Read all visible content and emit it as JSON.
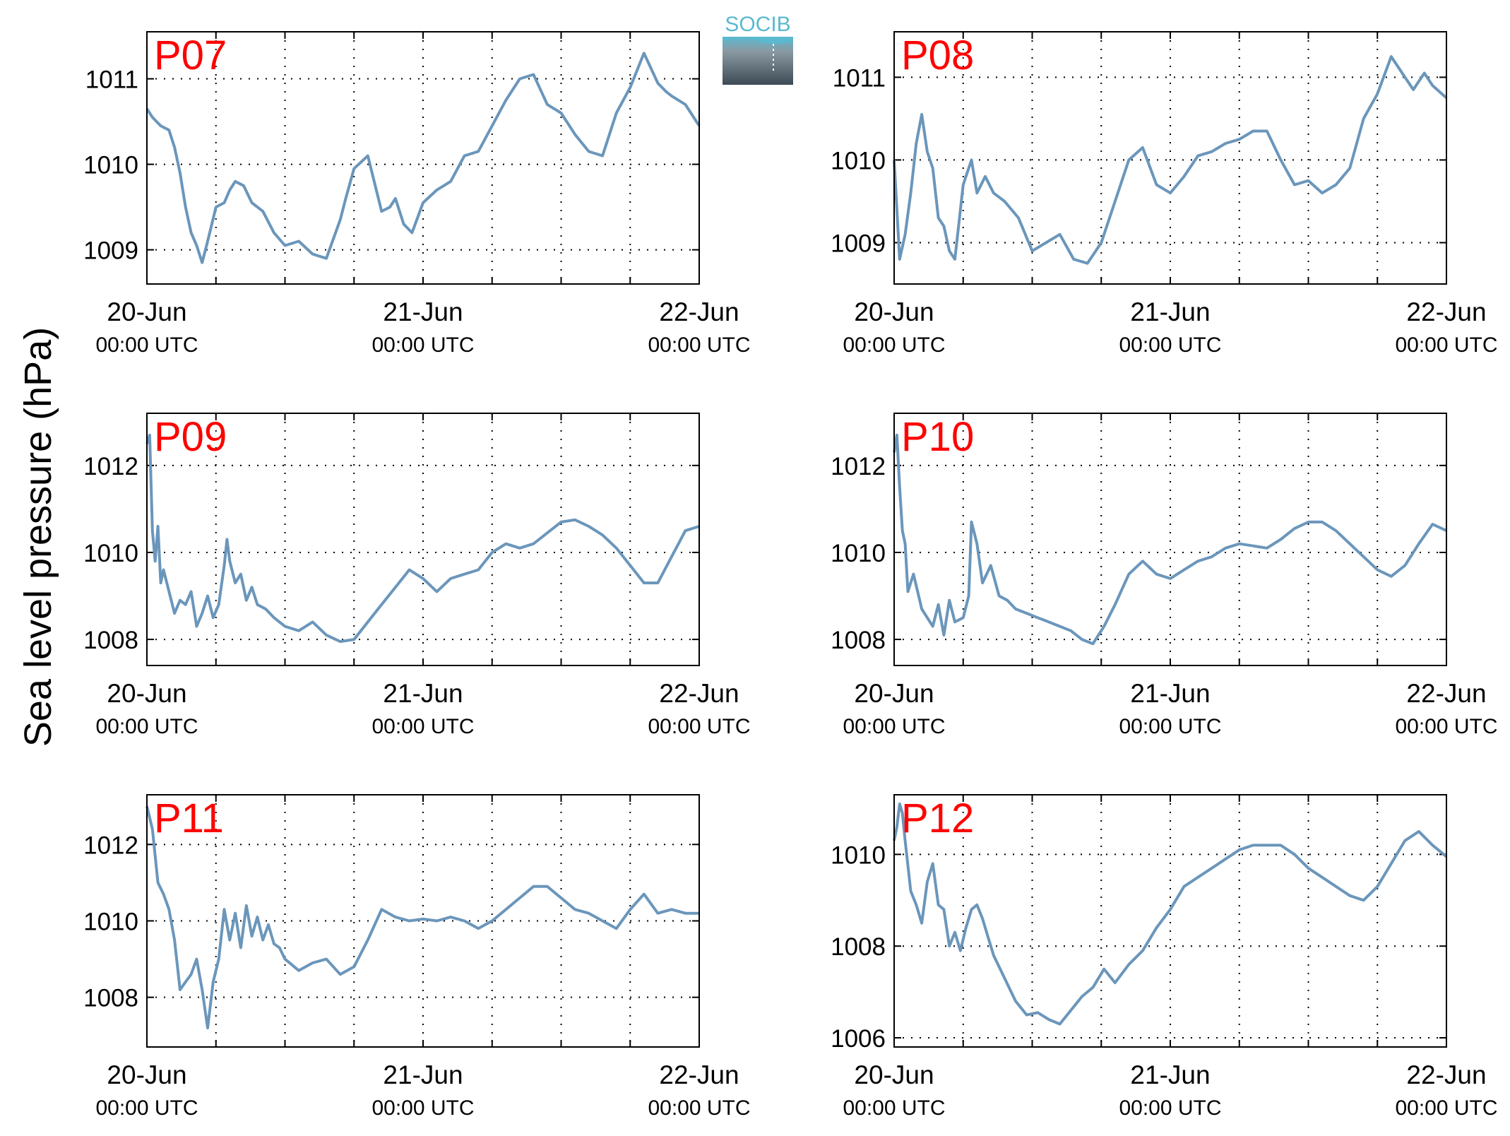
{
  "figure": {
    "ylabel": "Sea level pressure (hPa)",
    "logo_text": "SOCIB"
  },
  "colors": {
    "line": "#6b96bb",
    "panel_label": "#ff0000",
    "axis": "#000000",
    "grid": "#000000",
    "logo_top": "#5bb9cf",
    "logo_bottom": "#3d4a55"
  },
  "x_ticks": [
    {
      "x": 0,
      "date": "20-Jun",
      "time": "00:00 UTC"
    },
    {
      "x": 1,
      "date": "21-Jun",
      "time": "00:00 UTC"
    },
    {
      "x": 2,
      "date": "22-Jun",
      "time": "00:00 UTC"
    }
  ],
  "chart_data": [
    {
      "type": "line",
      "label": "P07",
      "xlim": [
        0,
        2
      ],
      "ylim": [
        1008.6,
        1011.55
      ],
      "yticks": [
        1009,
        1010,
        1011
      ],
      "x": [
        0,
        0.02,
        0.05,
        0.08,
        0.1,
        0.12,
        0.14,
        0.16,
        0.18,
        0.2,
        0.22,
        0.25,
        0.28,
        0.3,
        0.32,
        0.35,
        0.38,
        0.42,
        0.46,
        0.5,
        0.55,
        0.6,
        0.65,
        0.7,
        0.72,
        0.75,
        0.8,
        0.85,
        0.88,
        0.9,
        0.93,
        0.96,
        1.0,
        1.05,
        1.1,
        1.15,
        1.2,
        1.25,
        1.3,
        1.35,
        1.4,
        1.45,
        1.5,
        1.55,
        1.6,
        1.65,
        1.7,
        1.75,
        1.8,
        1.85,
        1.88,
        1.9,
        1.95,
        2.0
      ],
      "y": [
        1010.65,
        1010.55,
        1010.45,
        1010.4,
        1010.2,
        1009.9,
        1009.5,
        1009.2,
        1009.05,
        1008.85,
        1009.1,
        1009.5,
        1009.55,
        1009.7,
        1009.8,
        1009.75,
        1009.55,
        1009.45,
        1009.2,
        1009.05,
        1009.1,
        1008.95,
        1008.9,
        1009.35,
        1009.6,
        1009.95,
        1010.1,
        1009.45,
        1009.5,
        1009.6,
        1009.3,
        1009.2,
        1009.55,
        1009.7,
        1009.8,
        1010.1,
        1010.15,
        1010.45,
        1010.75,
        1011.0,
        1011.05,
        1010.7,
        1010.6,
        1010.35,
        1010.15,
        1010.1,
        1010.6,
        1010.9,
        1011.3,
        1010.95,
        1010.85,
        1010.8,
        1010.7,
        1010.45
      ]
    },
    {
      "type": "line",
      "label": "P08",
      "xlim": [
        0,
        2
      ],
      "ylim": [
        1008.5,
        1011.55
      ],
      "yticks": [
        1009,
        1010,
        1011
      ],
      "x": [
        0,
        0.02,
        0.04,
        0.06,
        0.08,
        0.1,
        0.12,
        0.14,
        0.16,
        0.18,
        0.2,
        0.22,
        0.25,
        0.28,
        0.3,
        0.33,
        0.36,
        0.4,
        0.45,
        0.5,
        0.55,
        0.6,
        0.65,
        0.7,
        0.75,
        0.8,
        0.85,
        0.9,
        0.95,
        1.0,
        1.05,
        1.1,
        1.15,
        1.2,
        1.25,
        1.3,
        1.35,
        1.4,
        1.45,
        1.5,
        1.55,
        1.6,
        1.65,
        1.7,
        1.75,
        1.8,
        1.85,
        1.88,
        1.92,
        1.95,
        2.0
      ],
      "y": [
        1010.0,
        1008.8,
        1009.1,
        1009.6,
        1010.2,
        1010.55,
        1010.1,
        1009.9,
        1009.3,
        1009.2,
        1008.9,
        1008.8,
        1009.7,
        1010.0,
        1009.6,
        1009.8,
        1009.6,
        1009.5,
        1009.3,
        1008.9,
        1009.0,
        1009.1,
        1008.8,
        1008.75,
        1009.0,
        1009.5,
        1010.0,
        1010.15,
        1009.7,
        1009.6,
        1009.8,
        1010.05,
        1010.1,
        1010.2,
        1010.25,
        1010.35,
        1010.35,
        1010.0,
        1009.7,
        1009.75,
        1009.6,
        1009.7,
        1009.9,
        1010.5,
        1010.8,
        1011.25,
        1011.0,
        1010.85,
        1011.05,
        1010.9,
        1010.75
      ]
    },
    {
      "type": "line",
      "label": "P09",
      "xlim": [
        0,
        2
      ],
      "ylim": [
        1007.4,
        1013.2
      ],
      "yticks": [
        1008,
        1010,
        1012
      ],
      "x": [
        0,
        0.01,
        0.02,
        0.03,
        0.04,
        0.05,
        0.06,
        0.08,
        0.1,
        0.12,
        0.14,
        0.16,
        0.18,
        0.2,
        0.22,
        0.24,
        0.26,
        0.28,
        0.29,
        0.3,
        0.32,
        0.34,
        0.36,
        0.38,
        0.4,
        0.43,
        0.46,
        0.5,
        0.55,
        0.6,
        0.65,
        0.7,
        0.75,
        0.8,
        0.85,
        0.9,
        0.95,
        1.0,
        1.05,
        1.1,
        1.15,
        1.2,
        1.25,
        1.3,
        1.35,
        1.4,
        1.45,
        1.5,
        1.55,
        1.6,
        1.65,
        1.7,
        1.75,
        1.8,
        1.85,
        1.9,
        1.95,
        2.0
      ],
      "y": [
        1012.5,
        1012.7,
        1010.5,
        1009.8,
        1010.6,
        1009.3,
        1009.6,
        1009.1,
        1008.6,
        1008.9,
        1008.8,
        1009.1,
        1008.3,
        1008.6,
        1009.0,
        1008.5,
        1008.8,
        1009.7,
        1010.3,
        1009.8,
        1009.3,
        1009.5,
        1008.9,
        1009.2,
        1008.8,
        1008.7,
        1008.5,
        1008.3,
        1008.2,
        1008.4,
        1008.1,
        1007.95,
        1008.0,
        1008.4,
        1008.8,
        1009.2,
        1009.6,
        1009.4,
        1009.1,
        1009.4,
        1009.5,
        1009.6,
        1010.0,
        1010.2,
        1010.1,
        1010.2,
        1010.45,
        1010.7,
        1010.75,
        1010.6,
        1010.4,
        1010.1,
        1009.7,
        1009.3,
        1009.3,
        1009.9,
        1010.5,
        1010.6
      ]
    },
    {
      "type": "line",
      "label": "P10",
      "xlim": [
        0,
        2
      ],
      "ylim": [
        1007.4,
        1013.2
      ],
      "yticks": [
        1008,
        1010,
        1012
      ],
      "x": [
        0,
        0.01,
        0.02,
        0.03,
        0.04,
        0.05,
        0.07,
        0.1,
        0.12,
        0.14,
        0.16,
        0.18,
        0.2,
        0.22,
        0.25,
        0.27,
        0.28,
        0.3,
        0.32,
        0.35,
        0.38,
        0.41,
        0.44,
        0.48,
        0.52,
        0.56,
        0.6,
        0.64,
        0.68,
        0.72,
        0.76,
        0.8,
        0.85,
        0.9,
        0.95,
        1.0,
        1.05,
        1.1,
        1.15,
        1.2,
        1.25,
        1.3,
        1.35,
        1.4,
        1.45,
        1.5,
        1.55,
        1.6,
        1.65,
        1.7,
        1.75,
        1.8,
        1.85,
        1.9,
        1.95,
        2.0
      ],
      "y": [
        1012.3,
        1012.7,
        1011.5,
        1010.5,
        1010.2,
        1009.1,
        1009.5,
        1008.7,
        1008.5,
        1008.3,
        1008.8,
        1008.1,
        1008.9,
        1008.4,
        1008.5,
        1009.0,
        1010.7,
        1010.2,
        1009.3,
        1009.7,
        1009.0,
        1008.9,
        1008.7,
        1008.6,
        1008.5,
        1008.4,
        1008.3,
        1008.2,
        1008.0,
        1007.9,
        1008.3,
        1008.8,
        1009.5,
        1009.8,
        1009.5,
        1009.4,
        1009.6,
        1009.8,
        1009.9,
        1010.1,
        1010.2,
        1010.15,
        1010.1,
        1010.3,
        1010.55,
        1010.7,
        1010.7,
        1010.5,
        1010.2,
        1009.9,
        1009.6,
        1009.45,
        1009.7,
        1010.2,
        1010.65,
        1010.5
      ]
    },
    {
      "type": "line",
      "label": "P11",
      "xlim": [
        0,
        2
      ],
      "ylim": [
        1006.7,
        1013.3
      ],
      "yticks": [
        1008,
        1010,
        1012
      ],
      "x": [
        0,
        0.02,
        0.04,
        0.06,
        0.08,
        0.1,
        0.12,
        0.14,
        0.16,
        0.18,
        0.2,
        0.22,
        0.24,
        0.26,
        0.28,
        0.3,
        0.32,
        0.34,
        0.36,
        0.38,
        0.4,
        0.42,
        0.44,
        0.46,
        0.48,
        0.5,
        0.55,
        0.6,
        0.65,
        0.7,
        0.75,
        0.8,
        0.85,
        0.9,
        0.95,
        1.0,
        1.05,
        1.1,
        1.15,
        1.2,
        1.25,
        1.3,
        1.35,
        1.4,
        1.45,
        1.5,
        1.55,
        1.6,
        1.65,
        1.7,
        1.75,
        1.8,
        1.85,
        1.9,
        1.95,
        2.0
      ],
      "y": [
        1013.0,
        1012.4,
        1011.0,
        1010.7,
        1010.3,
        1009.5,
        1008.2,
        1008.4,
        1008.6,
        1009.0,
        1008.2,
        1007.2,
        1008.4,
        1009.0,
        1010.3,
        1009.5,
        1010.2,
        1009.3,
        1010.4,
        1009.6,
        1010.1,
        1009.5,
        1009.9,
        1009.4,
        1009.3,
        1009.0,
        1008.7,
        1008.9,
        1009.0,
        1008.6,
        1008.8,
        1009.5,
        1010.3,
        1010.1,
        1010.0,
        1010.05,
        1010.0,
        1010.1,
        1010.0,
        1009.8,
        1010.0,
        1010.3,
        1010.6,
        1010.9,
        1010.9,
        1010.6,
        1010.3,
        1010.2,
        1010.0,
        1009.8,
        1010.3,
        1010.7,
        1010.2,
        1010.3,
        1010.2,
        1010.2
      ]
    },
    {
      "type": "line",
      "label": "P12",
      "xlim": [
        0,
        2
      ],
      "ylim": [
        1005.8,
        1011.3
      ],
      "yticks": [
        1006,
        1008,
        1010
      ],
      "x": [
        0,
        0.01,
        0.02,
        0.03,
        0.04,
        0.06,
        0.08,
        0.1,
        0.12,
        0.14,
        0.16,
        0.18,
        0.2,
        0.22,
        0.24,
        0.26,
        0.28,
        0.3,
        0.32,
        0.34,
        0.36,
        0.4,
        0.44,
        0.48,
        0.52,
        0.56,
        0.6,
        0.64,
        0.68,
        0.72,
        0.76,
        0.8,
        0.85,
        0.9,
        0.95,
        1.0,
        1.05,
        1.1,
        1.15,
        1.2,
        1.25,
        1.3,
        1.35,
        1.4,
        1.45,
        1.5,
        1.55,
        1.6,
        1.65,
        1.7,
        1.75,
        1.8,
        1.85,
        1.9,
        1.95,
        2.0
      ],
      "y": [
        1010.3,
        1010.6,
        1011.1,
        1010.9,
        1010.3,
        1009.2,
        1008.9,
        1008.5,
        1009.4,
        1009.8,
        1008.9,
        1008.8,
        1008.0,
        1008.3,
        1007.9,
        1008.4,
        1008.8,
        1008.9,
        1008.6,
        1008.2,
        1007.8,
        1007.3,
        1006.8,
        1006.5,
        1006.55,
        1006.4,
        1006.3,
        1006.6,
        1006.9,
        1007.1,
        1007.5,
        1007.2,
        1007.6,
        1007.9,
        1008.4,
        1008.8,
        1009.3,
        1009.5,
        1009.7,
        1009.9,
        1010.1,
        1010.2,
        1010.2,
        1010.2,
        1010.0,
        1009.7,
        1009.5,
        1009.3,
        1009.1,
        1009.0,
        1009.3,
        1009.8,
        1010.3,
        1010.5,
        1010.2,
        1009.95
      ]
    }
  ]
}
